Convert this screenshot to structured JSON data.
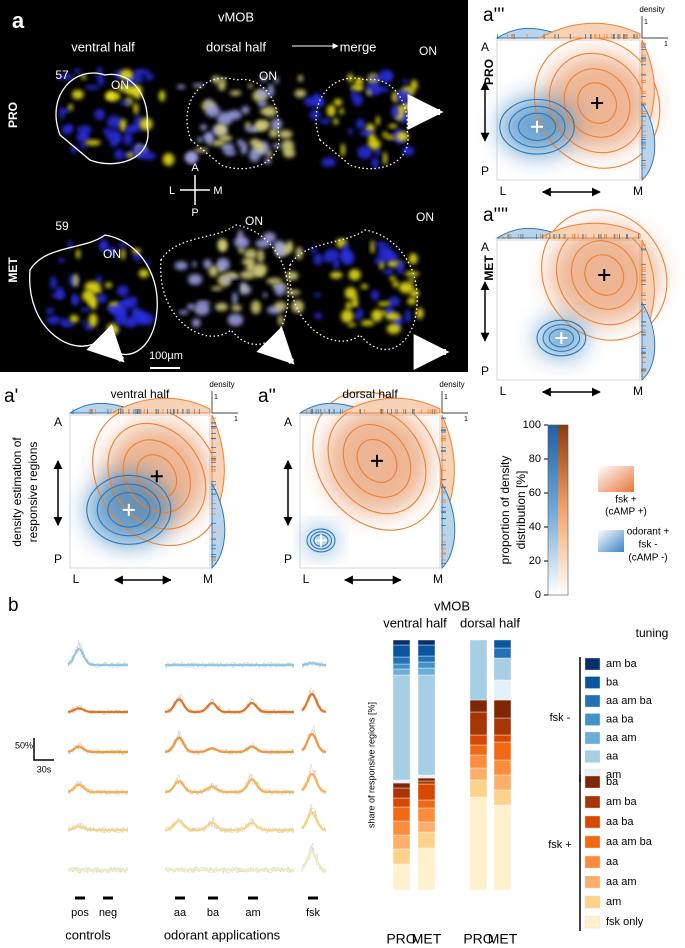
{
  "panel_a": {
    "label": "a",
    "title": "vMOB",
    "columns": [
      "ventral half",
      "dorsal half",
      "merge"
    ],
    "on_labels": [
      "ON",
      "ON",
      "ON",
      "ON",
      "ON",
      "ON"
    ],
    "rows": [
      {
        "label": "PRO",
        "id": "57"
      },
      {
        "label": "MET",
        "id": "59"
      }
    ],
    "compass": {
      "A": "A",
      "P": "P",
      "L": "L",
      "M": "M"
    },
    "scale_bar": "100µm"
  },
  "panel_a3": {
    "label": "a'''",
    "row": "PRO",
    "density": "density",
    "one_x": "1",
    "one_y": "1",
    "A": "A",
    "P": "P",
    "L": "L",
    "M": "M"
  },
  "panel_a4": {
    "label": "a''''",
    "row": "MET",
    "A": "A",
    "P": "P",
    "L": "L",
    "M": "M"
  },
  "panel_a1": {
    "label": "a'",
    "title": "ventral half",
    "density": "density",
    "one_x": "1",
    "one_y": "1",
    "A": "A",
    "P": "P",
    "L": "L",
    "M": "M",
    "y_label": [
      "density estimation of",
      "responsive regions"
    ]
  },
  "panel_a2": {
    "label": "a''",
    "title": "dorsal half",
    "density": "density",
    "one_x": "1",
    "one_y": "1",
    "A": "A",
    "P": "P",
    "L": "L",
    "M": "M"
  },
  "colorbar": {
    "lim": [
      0,
      100
    ],
    "ticks": [
      0,
      20,
      40,
      60,
      80,
      100
    ],
    "label": [
      "proportion of density",
      "distribution [%]"
    ]
  },
  "density_legend": {
    "fsk": [
      "fsk +",
      "(cAMP +)"
    ],
    "odorant": [
      "odorant +",
      "fsk -",
      "(cAMP -)"
    ]
  },
  "panel_b": {
    "label": "b",
    "scale_y": "50%",
    "scale_x": "30s",
    "stimuli": [
      "pos",
      "neg",
      "aa",
      "ba",
      "am",
      "fsk"
    ],
    "groups": [
      "controls",
      "odorant applications"
    ]
  },
  "chart_data": {
    "type": "stacked-bar",
    "title": "vMOB",
    "subtitles": [
      "ventral half",
      "dorsal half"
    ],
    "y_label": "share of responsive regions [%]",
    "categories": [
      "PRO",
      "MET",
      "PRO",
      "MET"
    ],
    "ylim": [
      0,
      100
    ],
    "legend_title": "tuning",
    "groups": [
      {
        "name": "fsk -",
        "series": [
          {
            "name": "am ba",
            "color": "#08306b",
            "values": [
              2,
              2,
              0,
              0
            ]
          },
          {
            "name": "ba",
            "color": "#0b559f",
            "values": [
              4.8,
              4.4,
              0,
              3.2
            ]
          },
          {
            "name": "aa am ba",
            "color": "#2272b6",
            "values": [
              2.8,
              2.4,
              0,
              4
            ]
          },
          {
            "name": "aa ba",
            "color": "#4292c6",
            "values": [
              2,
              2.4,
              0,
              0
            ]
          },
          {
            "name": "aa am",
            "color": "#6baed6",
            "values": [
              2.4,
              2.8,
              0,
              0
            ]
          },
          {
            "name": "aa",
            "color": "#a6cee4",
            "values": [
              42,
              40,
              24,
              8.8
            ]
          },
          {
            "name": "am",
            "color": "#e6f0f8",
            "values": [
              1.2,
              1.2,
              0,
              8
            ]
          }
        ]
      },
      {
        "name": "fsk +",
        "series": [
          {
            "name": "ba",
            "color": "#7f2704",
            "values": [
              2,
              1.2,
              4.8,
              7.2
            ]
          },
          {
            "name": "am ba",
            "color": "#a63603",
            "values": [
              4,
              1.2,
              9.2,
              6.8
            ]
          },
          {
            "name": "aa ba",
            "color": "#d94801",
            "values": [
              3.6,
              6.4,
              4,
              2.8
            ]
          },
          {
            "name": "aa am ba",
            "color": "#f16913",
            "values": [
              5.6,
              3.2,
              4,
              7.2
            ]
          },
          {
            "name": "aa",
            "color": "#fd8d3c",
            "values": [
              5.6,
              5.6,
              5.2,
              6
            ]
          },
          {
            "name": "aa am",
            "color": "#fdae6b",
            "values": [
              5.6,
              4,
              4.8,
              6
            ]
          },
          {
            "name": "am",
            "color": "#fdd28a",
            "values": [
              6,
              6.4,
              6.8,
              6
            ]
          },
          {
            "name": "fsk only",
            "color": "#fef1cb",
            "values": [
              10.4,
              16.8,
              37.2,
              34
            ]
          }
        ]
      }
    ]
  }
}
